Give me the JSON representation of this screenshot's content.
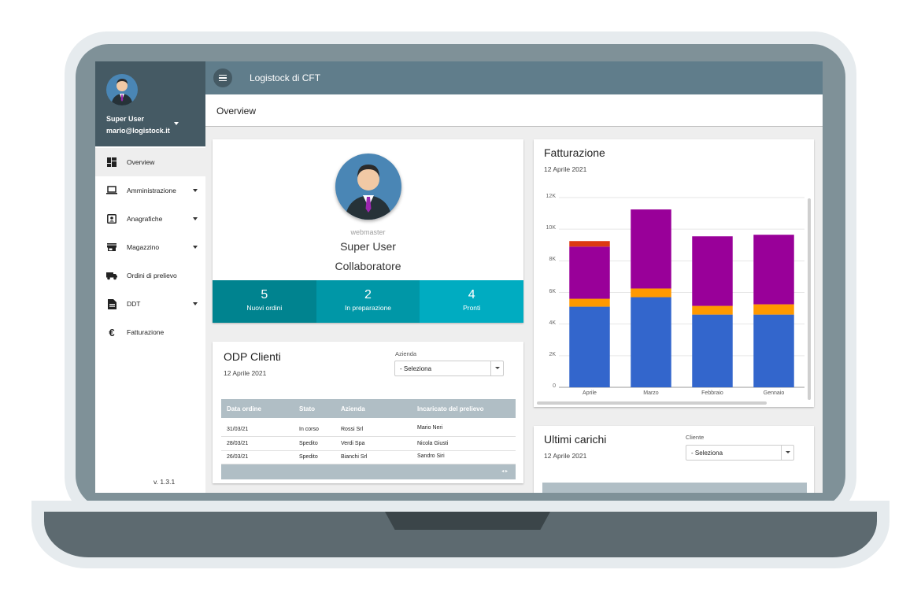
{
  "app": {
    "title": "Logistock di CFT",
    "page_title": "Overview"
  },
  "user": {
    "name": "Super User",
    "email": "mario@logistock.it",
    "role": "webmaster",
    "group": "Collaboratore"
  },
  "sidebar": {
    "items": [
      {
        "label": "Overview",
        "icon": "dashboard-icon",
        "active": true,
        "expandable": false
      },
      {
        "label": "Amministrazione",
        "icon": "laptop-icon",
        "active": false,
        "expandable": true
      },
      {
        "label": "Anagrafiche",
        "icon": "contact-card-icon",
        "active": false,
        "expandable": true
      },
      {
        "label": "Magazzino",
        "icon": "store-icon",
        "active": false,
        "expandable": true
      },
      {
        "label": "Ordini di prelievo",
        "icon": "truck-icon",
        "active": false,
        "expandable": false
      },
      {
        "label": "DDT",
        "icon": "document-icon",
        "active": false,
        "expandable": true
      },
      {
        "label": "Fatturazione",
        "icon": "euro-icon",
        "active": false,
        "expandable": false
      }
    ],
    "version": "v. 1.3.1"
  },
  "stats": [
    {
      "value": "5",
      "label": "Nuovi ordini",
      "color": "#00838f"
    },
    {
      "value": "2",
      "label": "In preparazione",
      "color": "#0097a7"
    },
    {
      "value": "4",
      "label": "Pronti",
      "color": "#00acc1"
    }
  ],
  "odp": {
    "title": "ODP Clienti",
    "date": "12 Aprile 2021",
    "filter_label": "Azienda",
    "filter_value": "- Seleziona",
    "columns": [
      "Data ordine",
      "Stato",
      "Azienda",
      "Incaricato del prelievo"
    ],
    "rows": [
      [
        "31/03/21",
        "In corso",
        "Rossi Srl",
        "Mario Neri"
      ],
      [
        "28/03/21",
        "Spedito",
        "Verdi Spa",
        "Nicola Giusti"
      ],
      [
        "26/03/21",
        "Spedito",
        "Bianchi Srl",
        "Sandro Siri"
      ]
    ],
    "pager": "◂   ▸"
  },
  "chart": {
    "title": "Fatturazione",
    "date": "12 Aprile 2021"
  },
  "chart_data": {
    "type": "bar",
    "stacked": true,
    "categories": [
      "Aprile",
      "Marzo",
      "Febbraio",
      "Gennaio"
    ],
    "y_ticks": [
      "0",
      "2K",
      "4K",
      "6K",
      "8K",
      "10K",
      "12K"
    ],
    "ylim": [
      0,
      12000
    ],
    "series": [
      {
        "color": "#3366cc",
        "values": [
          5100,
          5700,
          4600,
          4600
        ]
      },
      {
        "color": "#ff9900",
        "values": [
          500,
          550,
          550,
          650
        ]
      },
      {
        "color": "#990099",
        "values": [
          3300,
          5000,
          4400,
          4400
        ]
      },
      {
        "color": "#dc3912",
        "values": [
          350,
          0,
          0,
          0
        ]
      }
    ]
  },
  "ultimi": {
    "title": "Ultimi carichi",
    "date": "12 Aprile 2021",
    "filter_label": "Cliente",
    "filter_value": "- Seleziona"
  }
}
